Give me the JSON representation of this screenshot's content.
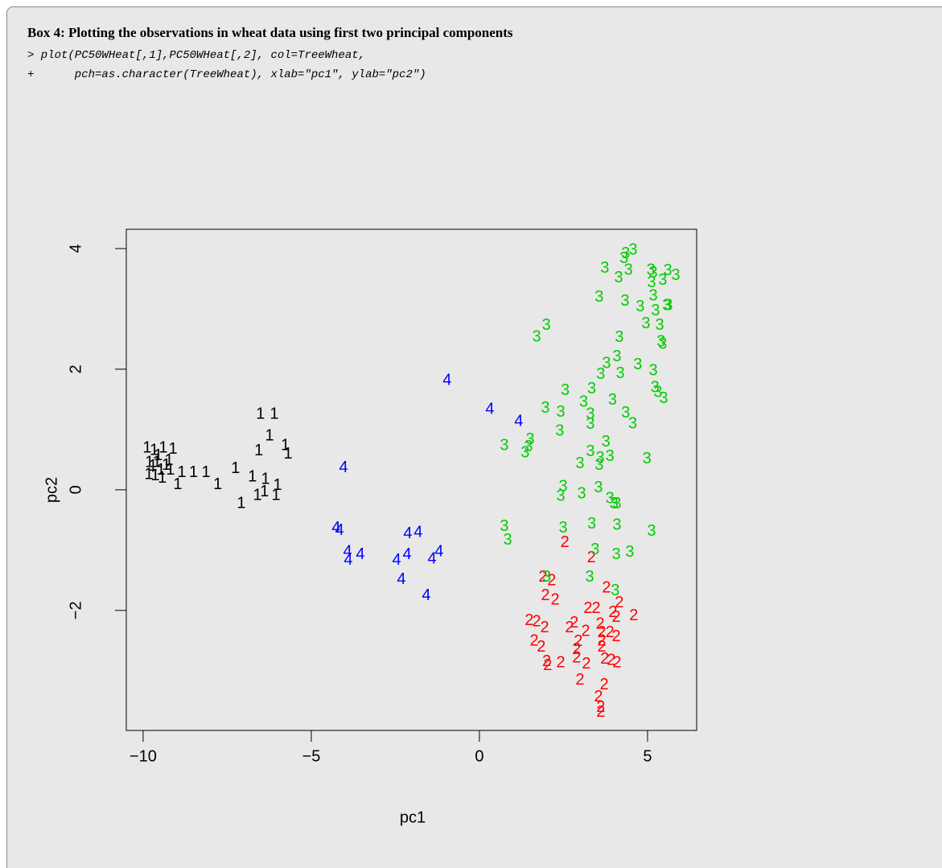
{
  "box": {
    "title": "Box 4: Plotting the observations in wheat data using first two principal components",
    "code": [
      "> plot(PC50WHeat[,1],PC50WHeat[,2], col=TreeWheat,",
      "+      pch=as.character(TreeWheat), xlab=\"pc1\", ylab=\"pc2\")"
    ]
  },
  "chart_data": {
    "type": "scatter",
    "x_label": "pc1",
    "y_label": "pc2",
    "xlim": [
      -10.5,
      6.46
    ],
    "ylim": [
      -3.99,
      4.32
    ],
    "xticks": [
      {
        "value": -10,
        "label": "−10"
      },
      {
        "value": -5,
        "label": "−5"
      },
      0,
      5
    ],
    "yticks": [
      {
        "value": -2,
        "label": "−2"
      },
      0,
      2,
      4
    ],
    "series": [
      {
        "name": "1",
        "color": "#000000",
        "x": [
          -8.85,
          -8.5,
          -8.13,
          -8.97,
          -7.78,
          -7.25,
          -7.08,
          -6.75,
          -6.6,
          -6.56,
          -6.51,
          -6.1,
          -6.24,
          -6.36,
          -6.05,
          -6.0,
          -5.77,
          -5.69,
          -6.39,
          -9.88,
          -9.67,
          -9.4,
          -9.11,
          -9.83,
          -9.71,
          -9.59,
          -9.47,
          -9.31,
          -9.81,
          -9.55,
          -9.23,
          -9.64,
          -9.43,
          -9.19
        ],
        "values": [
          0.28,
          0.28,
          0.28,
          0.08,
          0.08,
          0.35,
          -0.23,
          0.21,
          -0.1,
          0.64,
          1.25,
          1.25,
          0.89,
          0.17,
          -0.1,
          0.07,
          0.73,
          0.59,
          -0.04,
          0.69,
          0.65,
          0.69,
          0.67,
          0.25,
          0.39,
          0.45,
          0.32,
          0.4,
          0.45,
          0.56,
          0.48,
          0.23,
          0.19,
          0.32
        ]
      },
      {
        "name": "2",
        "color": "#ff0000",
        "x": [
          2.54,
          3.33,
          1.89,
          2.15,
          1.96,
          2.25,
          3.78,
          4.16,
          4.59,
          3.23,
          3.47,
          3.97,
          4.07,
          1.48,
          1.7,
          1.94,
          2.82,
          2.68,
          3.59,
          3.16,
          3.64,
          3.88,
          1.63,
          2.94,
          3.64,
          4.07,
          1.84,
          2.89,
          3.64,
          2.0,
          2.42,
          2.89,
          3.73,
          3.92,
          4.09,
          3.18,
          2.03,
          2.99,
          3.71,
          3.54,
          3.61,
          3.61
        ],
        "values": [
          -0.88,
          -1.13,
          -1.45,
          -1.51,
          -1.76,
          -1.83,
          -1.63,
          -1.88,
          -2.09,
          -1.97,
          -1.97,
          -2.04,
          -2.12,
          -2.17,
          -2.19,
          -2.29,
          -2.21,
          -2.29,
          -2.23,
          -2.35,
          -2.37,
          -2.37,
          -2.51,
          -2.52,
          -2.51,
          -2.44,
          -2.61,
          -2.65,
          -2.61,
          -2.85,
          -2.87,
          -2.79,
          -2.81,
          -2.83,
          -2.87,
          -2.89,
          -2.92,
          -3.16,
          -3.24,
          -3.44,
          -3.61,
          -3.69
        ]
      },
      {
        "name": "3",
        "color": "#00cd00",
        "x": [
          4.57,
          4.35,
          4.3,
          3.73,
          4.43,
          4.14,
          5.1,
          5.17,
          5.6,
          5.84,
          5.45,
          5.12,
          3.56,
          4.33,
          4.78,
          5.17,
          5.24,
          5.57,
          5.62,
          4.95,
          5.36,
          5.4,
          5.45,
          1.99,
          1.7,
          4.16,
          4.09,
          3.78,
          4.71,
          4.19,
          3.61,
          5.17,
          5.22,
          5.31,
          5.48,
          3.34,
          2.55,
          3.1,
          3.96,
          4.35,
          4.56,
          1.96,
          2.42,
          3.3,
          2.39,
          3.3,
          1.51,
          1.46,
          0.74,
          1.36,
          3.76,
          3.3,
          3.88,
          3.59,
          2.99,
          3.56,
          4.98,
          2.49,
          2.42,
          3.04,
          3.54,
          3.88,
          4.0,
          4.09,
          0.74,
          0.84,
          2.49,
          3.34,
          4.09,
          5.12,
          3.44,
          4.07,
          4.47,
          2.0,
          3.28,
          4.04
        ],
        "values": [
          3.97,
          3.91,
          3.83,
          3.67,
          3.64,
          3.51,
          3.64,
          3.59,
          3.63,
          3.55,
          3.47,
          3.43,
          3.19,
          3.12,
          3.03,
          3.21,
          2.96,
          3.05,
          3.05,
          2.75,
          2.72,
          2.45,
          2.41,
          2.72,
          2.53,
          2.52,
          2.2,
          2.09,
          2.07,
          1.92,
          1.91,
          1.97,
          1.69,
          1.61,
          1.51,
          1.67,
          1.64,
          1.45,
          1.48,
          1.27,
          1.09,
          1.35,
          1.28,
          1.25,
          0.97,
          1.08,
          0.83,
          0.71,
          0.73,
          0.61,
          0.79,
          0.63,
          0.55,
          0.52,
          0.43,
          0.4,
          0.51,
          0.05,
          -0.11,
          -0.07,
          0.03,
          -0.15,
          -0.24,
          -0.24,
          -0.61,
          -0.84,
          -0.64,
          -0.57,
          -0.59,
          -0.69,
          -1.0,
          -1.08,
          -1.04,
          -1.45,
          -1.45,
          -1.68
        ]
      },
      {
        "name": "4",
        "color": "#0000ff",
        "x": [
          -0.96,
          0.31,
          1.17,
          -4.04,
          -4.26,
          -4.16,
          -3.92,
          -3.9,
          -3.54,
          -2.46,
          -2.15,
          -2.13,
          -1.82,
          -2.32,
          -1.58,
          -1.41,
          -1.2
        ],
        "values": [
          1.81,
          1.33,
          1.13,
          0.36,
          -0.64,
          -0.68,
          -1.03,
          -1.17,
          -1.08,
          -1.17,
          -1.08,
          -0.73,
          -0.71,
          -1.49,
          -1.76,
          -1.15,
          -1.03
        ]
      }
    ]
  }
}
